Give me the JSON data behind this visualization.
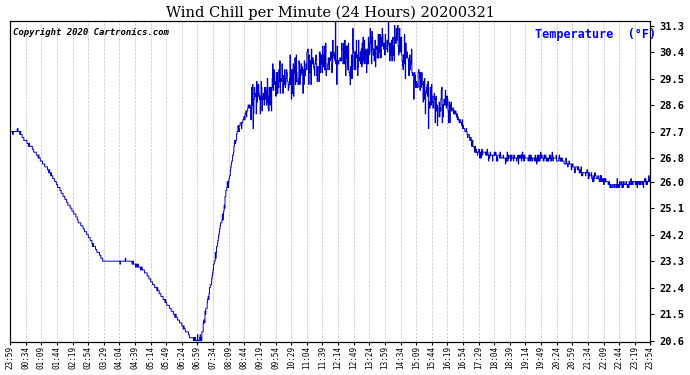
{
  "title": "Wind Chill per Minute (24 Hours) 20200321",
  "copyright": "Copyright 2020 Cartronics.com",
  "legend_label": "Temperature  (°F)",
  "y_ticks": [
    20.6,
    21.5,
    22.4,
    23.3,
    24.2,
    25.1,
    26.0,
    26.8,
    27.7,
    28.6,
    29.5,
    30.4,
    31.3
  ],
  "x_labels": [
    "23:59",
    "00:34",
    "01:09",
    "01:44",
    "02:19",
    "02:54",
    "03:29",
    "04:04",
    "04:39",
    "05:14",
    "05:49",
    "06:24",
    "06:59",
    "07:34",
    "08:09",
    "08:44",
    "09:19",
    "09:54",
    "10:29",
    "11:04",
    "11:39",
    "12:14",
    "12:49",
    "13:24",
    "13:59",
    "14:34",
    "15:09",
    "15:44",
    "16:19",
    "16:54",
    "17:29",
    "18:04",
    "18:39",
    "19:14",
    "19:49",
    "20:24",
    "20:59",
    "21:34",
    "22:09",
    "22:44",
    "23:19",
    "23:54"
  ],
  "line_color": "#0000cc",
  "background_color": "#ffffff",
  "grid_color": "#bbbbbb",
  "title_color": "#000000",
  "copyright_color": "#000000",
  "legend_color": "#0000ff",
  "y_min": 20.6,
  "y_max": 31.3,
  "figsize": [
    6.9,
    3.75
  ],
  "dpi": 100
}
